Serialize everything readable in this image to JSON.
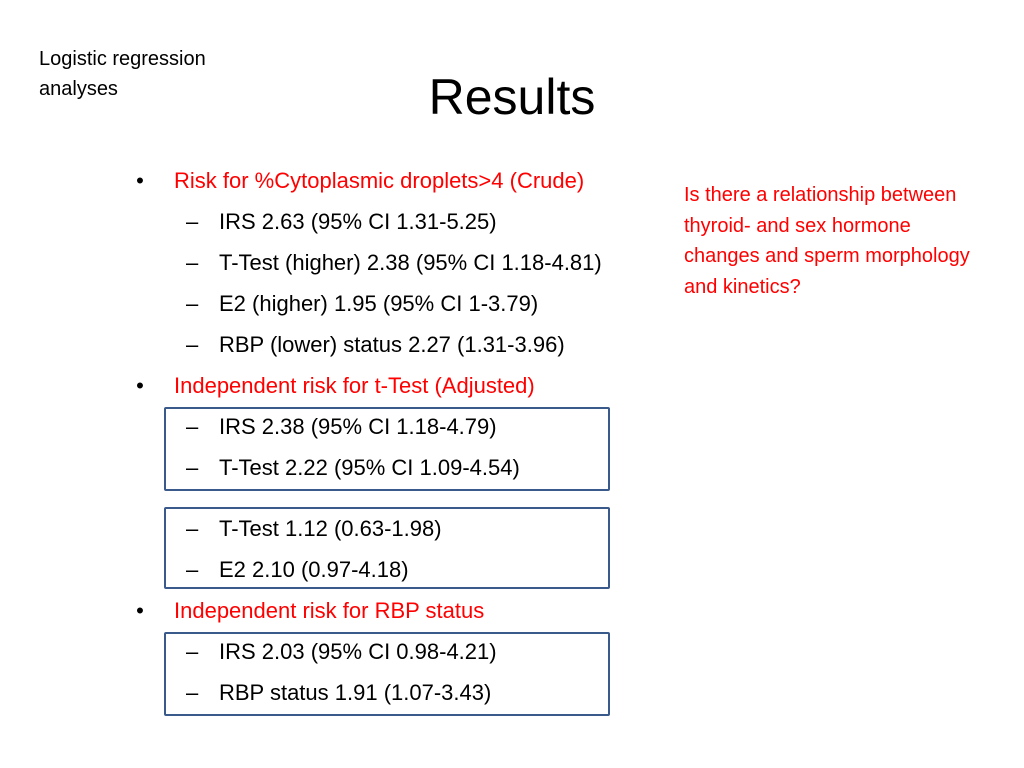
{
  "corner_label": {
    "line1": "Logistic regression",
    "line2": "analyses"
  },
  "title": "Results",
  "side_note": "Is there a relationship between thyroid- and sex hormone changes and sperm morphology and kinetics?",
  "bullet_glyph": "•",
  "dash_glyph": "–",
  "bullets": [
    {
      "text": "Risk for %Cytoplasmic droplets>4 (Crude)",
      "items": [
        "IRS 2.63 (95% CI 1.31-5.25)",
        "T-Test (higher) 2.38 (95% CI 1.18-4.81)",
        "E2 (higher) 1.95 (95% CI 1-3.79)",
        "RBP (lower) status 2.27 (1.31-3.96)"
      ]
    },
    {
      "text": "Independent risk for t-Test (Adjusted)",
      "box1": [
        "IRS 2.38 (95% CI 1.18-4.79)",
        "T-Test 2.22 (95% CI 1.09-4.54)"
      ],
      "box2": [
        "T-Test 1.12 (0.63-1.98)",
        "E2 2.10 (0.97-4.18)"
      ]
    },
    {
      "text": "Independent risk for RBP status",
      "box1": [
        "IRS 2.03 (95% CI 0.98-4.21)",
        "RBP status 1.91 (1.07-3.43)"
      ]
    }
  ],
  "colors": {
    "accent": "#ff0000",
    "box_border": "#3a5a8c",
    "text": "#000000"
  }
}
